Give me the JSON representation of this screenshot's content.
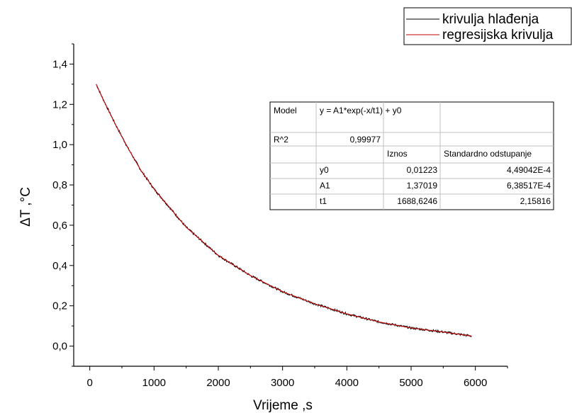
{
  "chart_data": {
    "type": "line",
    "xlabel": "Vrijeme ,s",
    "ylabel": "ΔT ,°C",
    "xlim": [
      -250,
      6500
    ],
    "ylim": [
      -0.1,
      1.5
    ],
    "xticks": [
      0,
      1000,
      2000,
      3000,
      4000,
      5000,
      6000
    ],
    "xtick_labels": [
      "0",
      "1000",
      "2000",
      "3000",
      "4000",
      "5000",
      "6000"
    ],
    "yticks": [
      0.0,
      0.2,
      0.4,
      0.6,
      0.8,
      1.0,
      1.2,
      1.4
    ],
    "ytick_labels": [
      "0,0",
      "0,2",
      "0,4",
      "0,6",
      "0,8",
      "1,0",
      "1,2",
      "1,4"
    ],
    "grid": false,
    "legend_position": "top-right",
    "series": [
      {
        "name": "krivulja hlađenja",
        "color": "#000000",
        "style": "noisy",
        "x": [
          100,
          200,
          400,
          600,
          800,
          1000,
          1500,
          2000,
          2500,
          3000,
          3500,
          4000,
          4500,
          5000,
          5500,
          5940
        ],
        "y": [
          1.3,
          1.23,
          1.1,
          0.98,
          0.87,
          0.78,
          0.59,
          0.45,
          0.35,
          0.27,
          0.21,
          0.16,
          0.12,
          0.09,
          0.07,
          0.05
        ]
      },
      {
        "name": "regresijska krivulja",
        "color": "#c00000",
        "style": "smooth",
        "x": [
          100,
          200,
          400,
          600,
          800,
          1000,
          1500,
          2000,
          2500,
          3000,
          3500,
          4000,
          4500,
          5000,
          5500,
          5940
        ],
        "y": [
          1.3,
          1.23,
          1.1,
          0.98,
          0.87,
          0.78,
          0.59,
          0.45,
          0.35,
          0.27,
          0.21,
          0.16,
          0.12,
          0.09,
          0.07,
          0.05
        ]
      }
    ],
    "fit_model": {
      "y0": 0.01223,
      "A1": 1.37019,
      "t1": 1688.6246
    },
    "fit_table": [
      [
        "Model",
        "y = A1*exp(-x/t1) + y0",
        "",
        ""
      ],
      [
        "R^2",
        "0,99977",
        "",
        ""
      ],
      [
        "",
        "",
        "Iznos",
        "Standardno odstupanje"
      ],
      [
        "",
        "y0",
        "0,01223",
        "4,49042E-4"
      ],
      [
        "",
        "A1",
        "1,37019",
        "6,38517E-4"
      ],
      [
        "",
        "t1",
        "1688,6246",
        "2,15816"
      ]
    ]
  }
}
